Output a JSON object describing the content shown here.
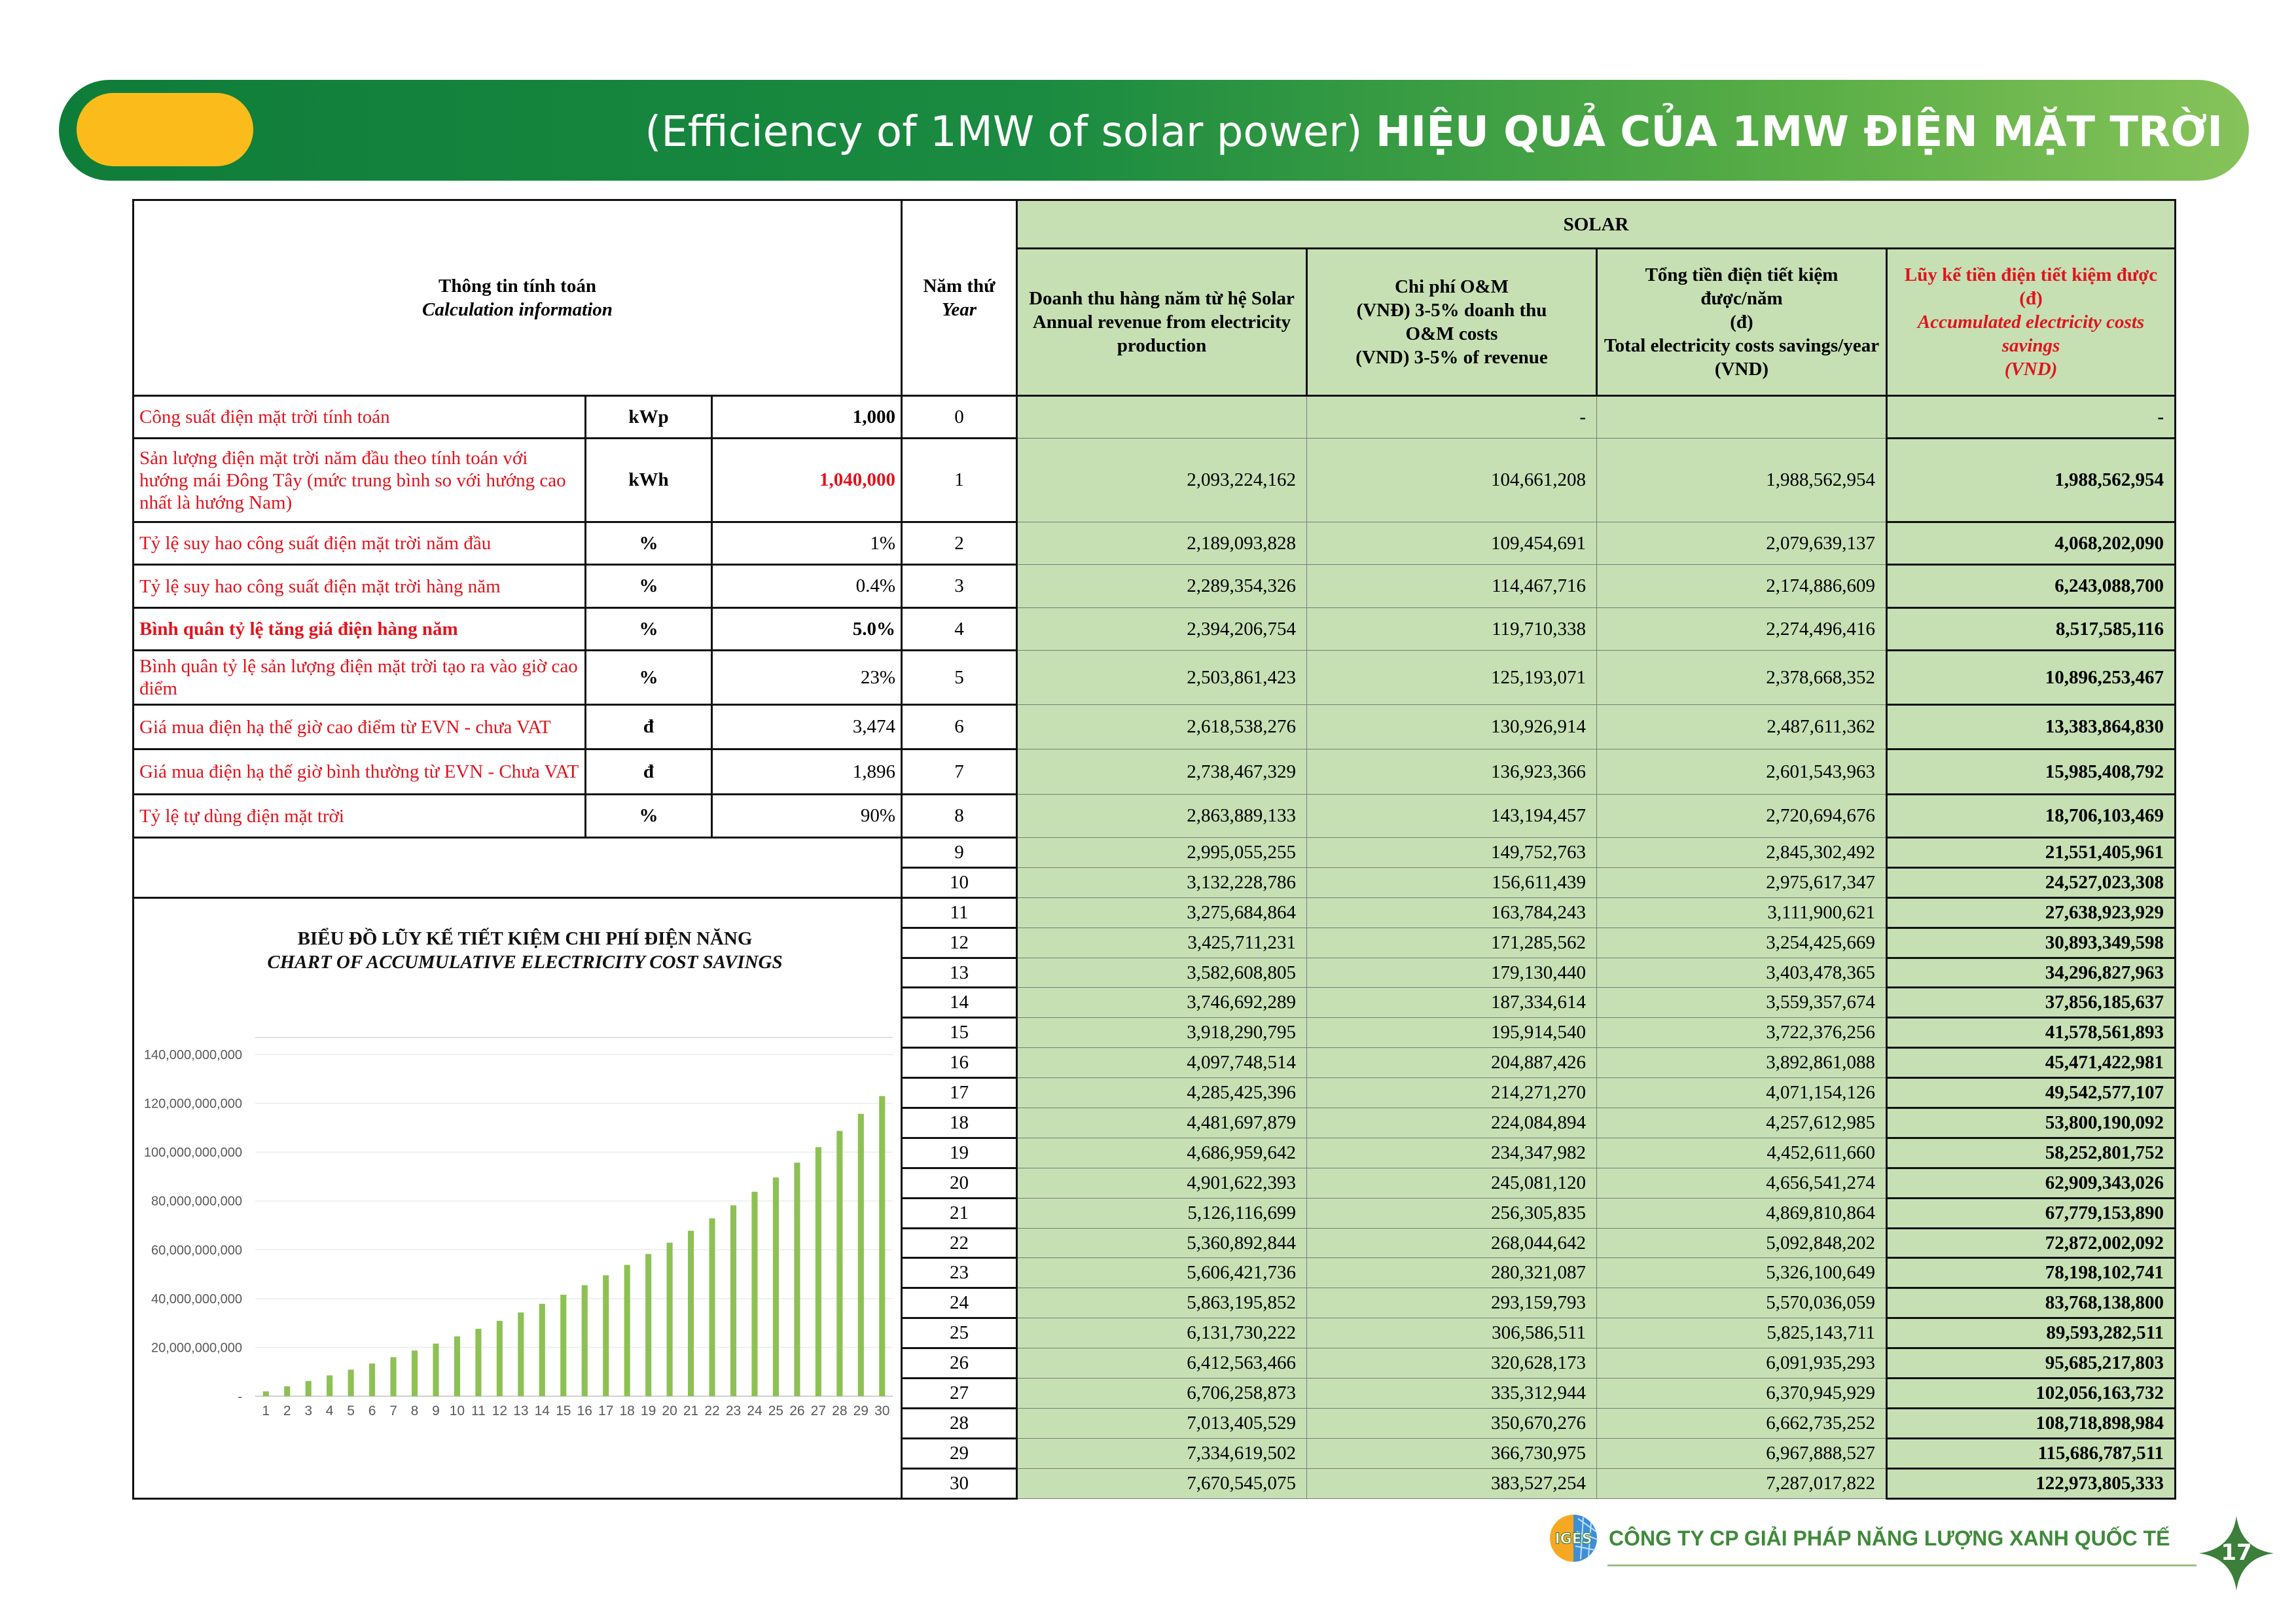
{
  "header": {
    "title_en": "(Efficiency of 1MW of solar power)",
    "title_vi": "HIỆU QUẢ CỦA 1MW ĐIỆN MẶT TRỜI",
    "colors": {
      "banner_dark": "#0f7d3a",
      "banner_light": "#86c35a",
      "pill": "#fbbc1b"
    }
  },
  "table": {
    "info_header_vi": "Thông tin tính toán",
    "info_header_en": "Calculation information",
    "year_header_vi": "Năm thứ",
    "year_header_en": "Year",
    "solar_header": "SOLAR",
    "col_revenue": [
      "Doanh thu hàng năm từ hệ Solar",
      "Annual revenue from electricity production"
    ],
    "col_om": [
      "Chi phí O&M",
      "(VNĐ) 3-5% doanh thu",
      "O&M costs",
      "(VND) 3-5% of revenue"
    ],
    "col_total": [
      "Tổng tiền điện tiết kiệm được/năm",
      "(đ)",
      "Total electricity costs savings/year",
      "(VND)"
    ],
    "col_accum": [
      "Lũy kế tiền điện tiết kiệm được",
      "(đ)",
      "Accumulated  electricity costs savings",
      "(VND)"
    ],
    "fill_color": "#c6e0b4",
    "info_rows": [
      {
        "label": "Công suất điện mặt trời tính toán",
        "unit": "kWp",
        "value": "1,000",
        "bold": false,
        "value_bold": true,
        "value_red": false
      },
      {
        "label": "Sản lượng điện mặt trời năm đầu theo tính toán với hướng mái Đông Tây (mức trung bình so với hướng cao nhất là hướng Nam)",
        "unit": "kWh",
        "value": "1,040,000",
        "bold": false,
        "value_bold": true,
        "value_red": true
      },
      {
        "label": "Tỷ lệ suy hao công suất điện mặt trời năm đầu",
        "unit": "%",
        "value": "1%",
        "bold": false,
        "value_bold": false,
        "value_red": false
      },
      {
        "label": "Tỷ lệ suy hao công suất điện mặt trời hàng năm",
        "unit": "%",
        "value": "0.4%",
        "bold": false,
        "value_bold": false,
        "value_red": false
      },
      {
        "label": "Bình quân tỷ lệ tăng giá điện hàng năm",
        "unit": "%",
        "value": "5.0%",
        "bold": true,
        "value_bold": true,
        "value_red": false
      },
      {
        "label": "Bình quân tỷ lệ sản lượng điện mặt trời tạo ra vào giờ cao điểm",
        "unit": "%",
        "value": "23%",
        "bold": false,
        "value_bold": false,
        "value_red": false
      },
      {
        "label": "Giá mua điện hạ thế giờ cao điểm từ EVN - chưa VAT",
        "unit": "đ",
        "value": "3,474",
        "bold": false,
        "value_bold": false,
        "value_red": false
      },
      {
        "label": "Giá mua điện hạ thế giờ bình thường từ EVN - Chưa VAT",
        "unit": "đ",
        "value": "1,896",
        "bold": false,
        "value_bold": false,
        "value_red": false
      },
      {
        "label": "Tỷ lệ tự dùng điện mặt trời",
        "unit": "%",
        "value": "90%",
        "bold": false,
        "value_bold": false,
        "value_red": false
      }
    ],
    "rows": [
      {
        "year": "0",
        "revenue": "",
        "om": "-",
        "total": "",
        "accum": "-"
      },
      {
        "year": "1",
        "revenue": "2,093,224,162",
        "om": "104,661,208",
        "total": "1,988,562,954",
        "accum": "1,988,562,954"
      },
      {
        "year": "2",
        "revenue": "2,189,093,828",
        "om": "109,454,691",
        "total": "2,079,639,137",
        "accum": "4,068,202,090"
      },
      {
        "year": "3",
        "revenue": "2,289,354,326",
        "om": "114,467,716",
        "total": "2,174,886,609",
        "accum": "6,243,088,700"
      },
      {
        "year": "4",
        "revenue": "2,394,206,754",
        "om": "119,710,338",
        "total": "2,274,496,416",
        "accum": "8,517,585,116"
      },
      {
        "year": "5",
        "revenue": "2,503,861,423",
        "om": "125,193,071",
        "total": "2,378,668,352",
        "accum": "10,896,253,467"
      },
      {
        "year": "6",
        "revenue": "2,618,538,276",
        "om": "130,926,914",
        "total": "2,487,611,362",
        "accum": "13,383,864,830"
      },
      {
        "year": "7",
        "revenue": "2,738,467,329",
        "om": "136,923,366",
        "total": "2,601,543,963",
        "accum": "15,985,408,792"
      },
      {
        "year": "8",
        "revenue": "2,863,889,133",
        "om": "143,194,457",
        "total": "2,720,694,676",
        "accum": "18,706,103,469"
      },
      {
        "year": "9",
        "revenue": "2,995,055,255",
        "om": "149,752,763",
        "total": "2,845,302,492",
        "accum": "21,551,405,961"
      },
      {
        "year": "10",
        "revenue": "3,132,228,786",
        "om": "156,611,439",
        "total": "2,975,617,347",
        "accum": "24,527,023,308"
      },
      {
        "year": "11",
        "revenue": "3,275,684,864",
        "om": "163,784,243",
        "total": "3,111,900,621",
        "accum": "27,638,923,929"
      },
      {
        "year": "12",
        "revenue": "3,425,711,231",
        "om": "171,285,562",
        "total": "3,254,425,669",
        "accum": "30,893,349,598"
      },
      {
        "year": "13",
        "revenue": "3,582,608,805",
        "om": "179,130,440",
        "total": "3,403,478,365",
        "accum": "34,296,827,963"
      },
      {
        "year": "14",
        "revenue": "3,746,692,289",
        "om": "187,334,614",
        "total": "3,559,357,674",
        "accum": "37,856,185,637"
      },
      {
        "year": "15",
        "revenue": "3,918,290,795",
        "om": "195,914,540",
        "total": "3,722,376,256",
        "accum": "41,578,561,893"
      },
      {
        "year": "16",
        "revenue": "4,097,748,514",
        "om": "204,887,426",
        "total": "3,892,861,088",
        "accum": "45,471,422,981"
      },
      {
        "year": "17",
        "revenue": "4,285,425,396",
        "om": "214,271,270",
        "total": "4,071,154,126",
        "accum": "49,542,577,107"
      },
      {
        "year": "18",
        "revenue": "4,481,697,879",
        "om": "224,084,894",
        "total": "4,257,612,985",
        "accum": "53,800,190,092"
      },
      {
        "year": "19",
        "revenue": "4,686,959,642",
        "om": "234,347,982",
        "total": "4,452,611,660",
        "accum": "58,252,801,752"
      },
      {
        "year": "20",
        "revenue": "4,901,622,393",
        "om": "245,081,120",
        "total": "4,656,541,274",
        "accum": "62,909,343,026"
      },
      {
        "year": "21",
        "revenue": "5,126,116,699",
        "om": "256,305,835",
        "total": "4,869,810,864",
        "accum": "67,779,153,890"
      },
      {
        "year": "22",
        "revenue": "5,360,892,844",
        "om": "268,044,642",
        "total": "5,092,848,202",
        "accum": "72,872,002,092"
      },
      {
        "year": "23",
        "revenue": "5,606,421,736",
        "om": "280,321,087",
        "total": "5,326,100,649",
        "accum": "78,198,102,741"
      },
      {
        "year": "24",
        "revenue": "5,863,195,852",
        "om": "293,159,793",
        "total": "5,570,036,059",
        "accum": "83,768,138,800"
      },
      {
        "year": "25",
        "revenue": "6,131,730,222",
        "om": "306,586,511",
        "total": "5,825,143,711",
        "accum": "89,593,282,511"
      },
      {
        "year": "26",
        "revenue": "6,412,563,466",
        "om": "320,628,173",
        "total": "6,091,935,293",
        "accum": "95,685,217,803"
      },
      {
        "year": "27",
        "revenue": "6,706,258,873",
        "om": "335,312,944",
        "total": "6,370,945,929",
        "accum": "102,056,163,732"
      },
      {
        "year": "28",
        "revenue": "7,013,405,529",
        "om": "350,670,276",
        "total": "6,662,735,252",
        "accum": "108,718,898,984"
      },
      {
        "year": "29",
        "revenue": "7,334,619,502",
        "om": "366,730,975",
        "total": "6,967,888,527",
        "accum": "115,686,787,511"
      },
      {
        "year": "30",
        "revenue": "7,670,545,075",
        "om": "383,527,254",
        "total": "7,287,017,822",
        "accum": "122,973,805,333"
      }
    ]
  },
  "chart_data": {
    "type": "bar",
    "title": "BIỂU ĐỒ LŨY KẾ TIẾT KIỆM CHI PHÍ ĐIỆN NĂNG",
    "subtitle": "CHART OF ACCUMULATIVE ELECTRICITY COST SAVINGS",
    "xlabel": "",
    "ylabel": "",
    "categories": [
      "1",
      "2",
      "3",
      "4",
      "5",
      "6",
      "7",
      "8",
      "9",
      "10",
      "11",
      "12",
      "13",
      "14",
      "15",
      "16",
      "17",
      "18",
      "19",
      "20",
      "21",
      "22",
      "23",
      "24",
      "25",
      "26",
      "27",
      "28",
      "29",
      "30"
    ],
    "values": [
      1988562954,
      4068202090,
      6243088700,
      8517585116,
      10896253467,
      13383864830,
      15985408792,
      18706103469,
      21551405961,
      24527023308,
      27638923929,
      30893349598,
      34296827963,
      37856185637,
      41578561893,
      45471422981,
      49542577107,
      53800190092,
      58252801752,
      62909343026,
      67779153890,
      72872002092,
      78198102741,
      83768138800,
      89593282511,
      95685217803,
      102056163732,
      108718898984,
      115686787511,
      122973805333
    ],
    "ylim": [
      0,
      140000000000
    ],
    "yticks": [
      0,
      20000000000,
      40000000000,
      60000000000,
      80000000000,
      100000000000,
      120000000000,
      140000000000
    ],
    "ytick_labels": [
      "-",
      "20,000,000,000",
      "40,000,000,000",
      "60,000,000,000",
      "80,000,000,000",
      "100,000,000,000",
      "120,000,000,000",
      "140,000,000,000"
    ],
    "bar_color": "#8dc153",
    "grid": true,
    "legend": "none"
  },
  "footer": {
    "logo_text": "IGES",
    "company": "CÔNG TY CP GIẢI PHÁP NĂNG LƯỢNG XANH QUỐC TẾ",
    "page_number": "17",
    "color": "#3f8a3a"
  }
}
